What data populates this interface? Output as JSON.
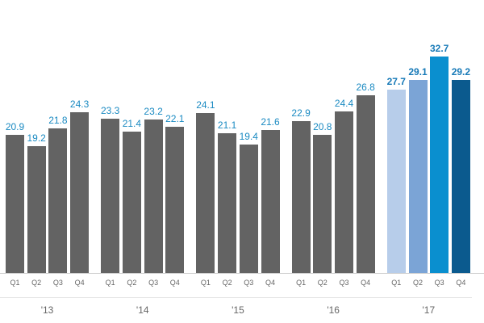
{
  "chart_data": {
    "type": "bar",
    "title": "",
    "xlabel": "",
    "ylabel": "",
    "grid": false,
    "legend": null,
    "groups": [
      "'13",
      "'14",
      "'15",
      "'16",
      "'17"
    ],
    "categories": [
      "Q1",
      "Q2",
      "Q3",
      "Q4",
      "Q1",
      "Q2",
      "Q3",
      "Q4",
      "Q1",
      "Q2",
      "Q3",
      "Q4",
      "Q1",
      "Q2",
      "Q3",
      "Q4",
      "Q1",
      "Q2",
      "Q3",
      "Q4"
    ],
    "series": [
      {
        "name": "values",
        "values": [
          20.9,
          19.2,
          21.8,
          24.3,
          23.3,
          21.4,
          23.2,
          22.1,
          24.1,
          21.1,
          19.4,
          21.6,
          22.9,
          20.8,
          24.4,
          26.8,
          27.7,
          29.1,
          32.7,
          29.2
        ]
      }
    ],
    "labels": [
      "20.9",
      "19.2",
      "21.8",
      "24.3",
      "23.3",
      "21.4",
      "23.2",
      "22.1",
      "24.1",
      "21.1",
      "19.4",
      "21.6",
      "22.9",
      "20.8",
      "24.4",
      "26.8",
      "27.7",
      "29.1",
      "32.7",
      "29.2"
    ],
    "ylim": [
      0,
      34
    ],
    "colors": {
      "default_bar": "#636363",
      "highlight_bars": [
        "#b7cdea",
        "#7ba4d6",
        "#0a8fcf",
        "#0b5a8e"
      ],
      "value_label": "#1a8ac2",
      "axis_text": "#666666"
    }
  }
}
